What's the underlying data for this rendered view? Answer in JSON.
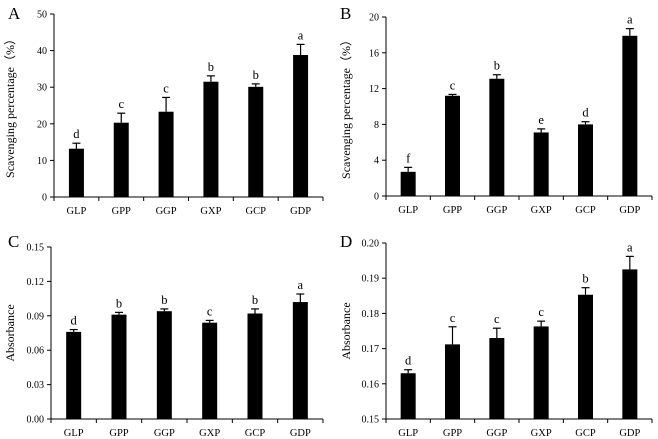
{
  "chart_data": [
    {
      "panel": "A",
      "type": "bar",
      "ylabel": "Scavenging percentage（%）",
      "ylim": [
        0,
        50
      ],
      "yticks": [
        0,
        10,
        20,
        30,
        40,
        50
      ],
      "tick_labels": [
        "0",
        "10",
        "20",
        "30",
        "40",
        "50"
      ],
      "categories": [
        "GLP",
        "GPP",
        "GGP",
        "GXP",
        "GCP",
        "GDP"
      ],
      "values": [
        13.2,
        20.3,
        23.3,
        31.5,
        30.1,
        38.8
      ],
      "errors": [
        1.5,
        2.6,
        3.9,
        1.6,
        0.8,
        2.9
      ],
      "significance": [
        "d",
        "c",
        "c",
        "b",
        "b",
        "a"
      ]
    },
    {
      "panel": "B",
      "type": "bar",
      "ylabel": "Scavenging percentage（%）",
      "ylim": [
        0,
        20
      ],
      "yticks": [
        0,
        4,
        8,
        12,
        16,
        20
      ],
      "tick_labels": [
        "0",
        "4",
        "8",
        "12",
        "16",
        "20"
      ],
      "categories": [
        "GLP",
        "GPP",
        "GGP",
        "GXP",
        "GCP",
        "GDP"
      ],
      "values": [
        2.7,
        11.2,
        13.1,
        7.1,
        8.0,
        17.9
      ],
      "errors": [
        0.5,
        0.15,
        0.45,
        0.4,
        0.3,
        0.8
      ],
      "significance": [
        "f",
        "c",
        "b",
        "e",
        "d",
        "a"
      ]
    },
    {
      "panel": "C",
      "type": "bar",
      "ylabel": "Absorbance",
      "ylim": [
        0,
        0.15
      ],
      "yticks": [
        0,
        0.03,
        0.06,
        0.09,
        0.12,
        0.15
      ],
      "tick_labels": [
        "0.00",
        "0.03",
        "0.06",
        "0.09",
        "0.12",
        "0.15"
      ],
      "categories": [
        "GLP",
        "GPP",
        "GGP",
        "GXP",
        "GCP",
        "GDP"
      ],
      "values": [
        0.076,
        0.091,
        0.094,
        0.084,
        0.092,
        0.102
      ],
      "errors": [
        0.002,
        0.002,
        0.002,
        0.002,
        0.004,
        0.007
      ],
      "significance": [
        "d",
        "b",
        "b",
        "c",
        "b",
        "a"
      ]
    },
    {
      "panel": "D",
      "type": "bar",
      "ylabel": "Absorbance",
      "ylim": [
        0.15,
        0.2
      ],
      "yticks": [
        0.15,
        0.16,
        0.17,
        0.18,
        0.19,
        0.2
      ],
      "tick_labels": [
        "0.15",
        "0.16",
        "0.17",
        "0.18",
        "0.19",
        "0.20"
      ],
      "categories": [
        "GLP",
        "GPP",
        "GGP",
        "GXP",
        "GCP",
        "GDP"
      ],
      "values": [
        0.163,
        0.1712,
        0.173,
        0.1763,
        0.1853,
        0.1925
      ],
      "errors": [
        0.001,
        0.005,
        0.0028,
        0.0015,
        0.002,
        0.0037
      ],
      "significance": [
        "d",
        "c",
        "c",
        "c",
        "b",
        "a"
      ]
    }
  ]
}
